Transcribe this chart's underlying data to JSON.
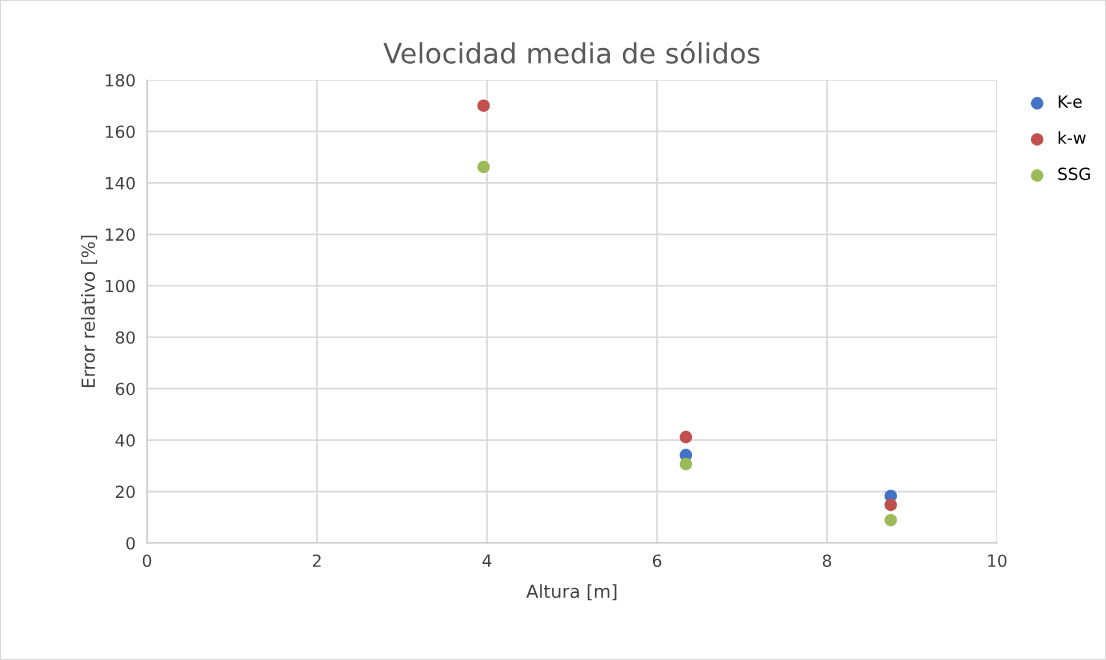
{
  "chart_data": {
    "type": "scatter",
    "title": "Velocidad media de sólidos",
    "xlabel": "Altura [m]",
    "ylabel": "Error relativo [%]",
    "x": [
      3.96,
      6.34,
      8.75
    ],
    "series": [
      {
        "name": "K-e",
        "color": "#4472c4",
        "values": [
          null,
          34.2,
          18.3
        ]
      },
      {
        "name": "k-w",
        "color": "#c0504d",
        "values": [
          170,
          41.2,
          14.8
        ]
      },
      {
        "name": "SSG",
        "color": "#9bbb59",
        "values": [
          146.2,
          30.7,
          8.9
        ]
      }
    ],
    "xlim": [
      0,
      10
    ],
    "xticks": [
      0,
      2,
      4,
      6,
      8,
      10
    ],
    "ylim": [
      0,
      180
    ],
    "yticks": [
      0,
      20,
      40,
      60,
      80,
      100,
      120,
      140,
      160,
      180
    ],
    "grid": true,
    "legend": "right",
    "marker": "circle"
  }
}
